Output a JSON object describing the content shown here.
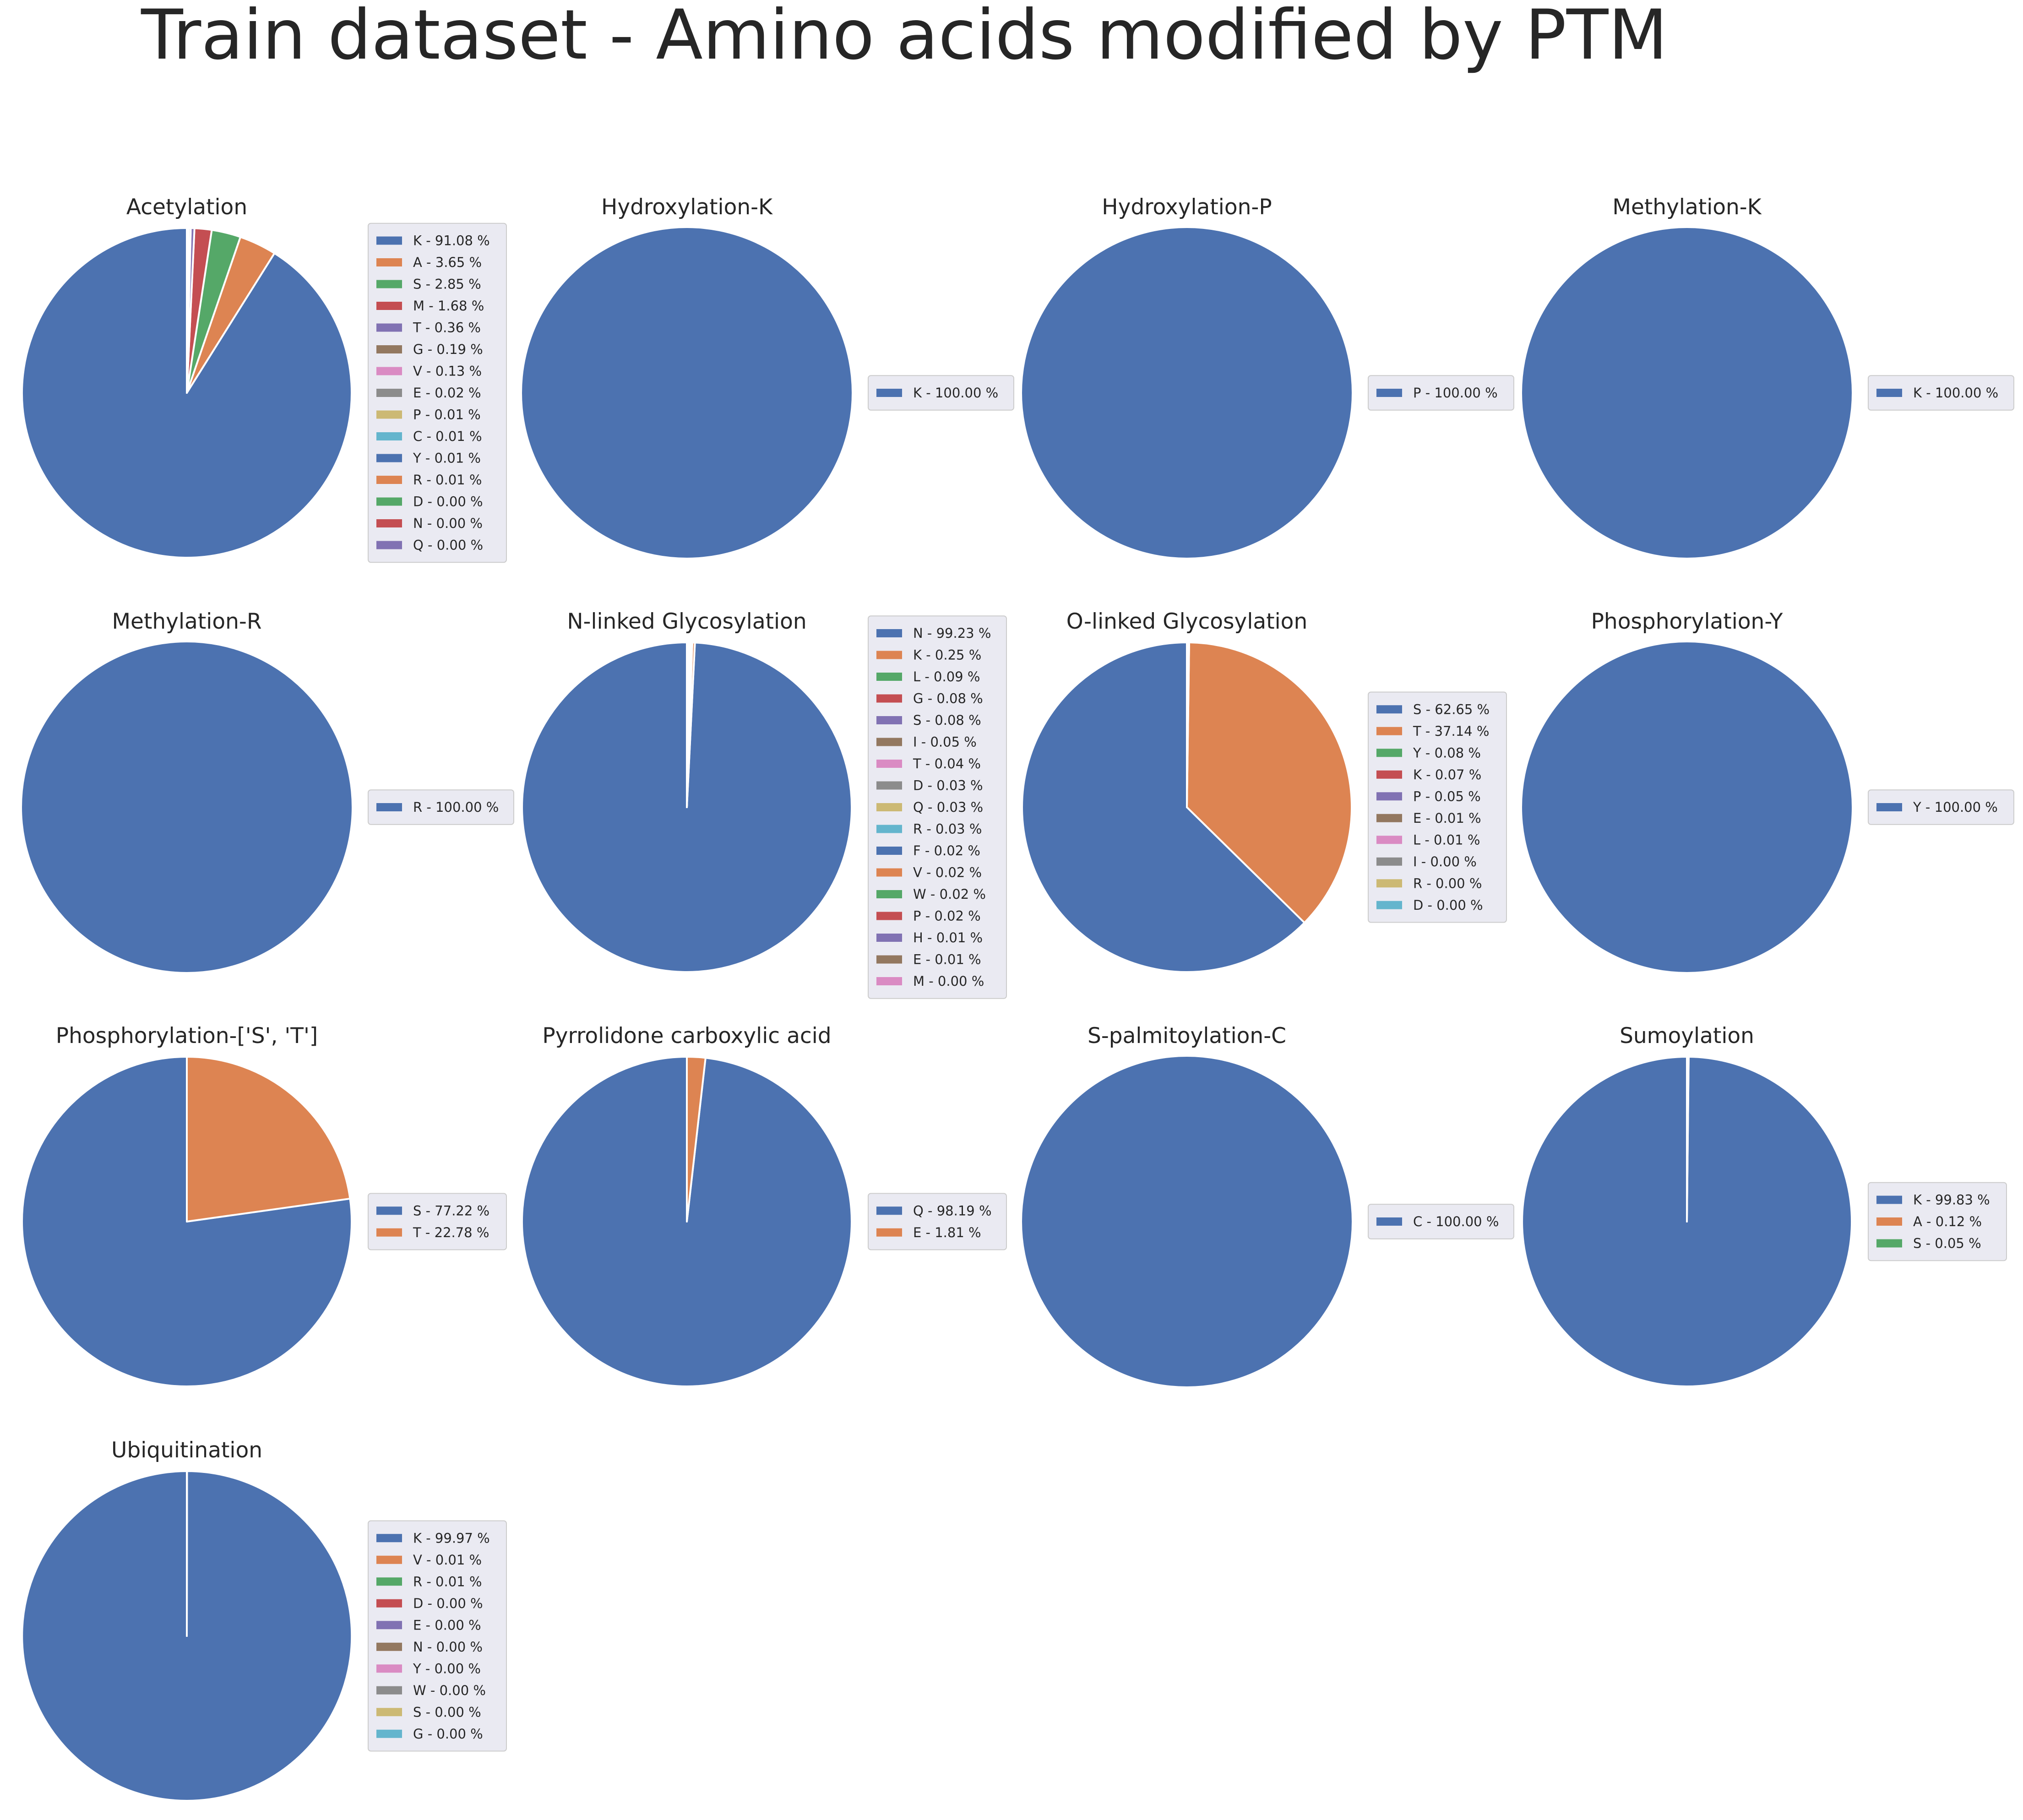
{
  "figure_title": "Train dataset - Amino acids modified by PTM",
  "colors": [
    "#4c72b0",
    "#dd8452",
    "#55a868",
    "#c44e52",
    "#8172b3",
    "#937860",
    "#da8bc3",
    "#8c8c8c",
    "#ccb974",
    "#64b5cd"
  ],
  "chart_data": [
    {
      "type": "pie",
      "title": "Acetylation",
      "labels": [
        "K",
        "A",
        "S",
        "M",
        "T",
        "G",
        "V",
        "E",
        "P",
        "C",
        "Y",
        "R",
        "D",
        "N",
        "Q"
      ],
      "values": [
        91.08,
        3.65,
        2.85,
        1.68,
        0.36,
        0.19,
        0.13,
        0.02,
        0.01,
        0.01,
        0.01,
        0.01,
        0.0,
        0.0,
        0.0
      ],
      "legend": [
        "K - 91.08 %",
        "A - 3.65 %",
        "S - 2.85 %",
        "M - 1.68 %",
        "T - 0.36 %",
        "G - 0.19 %",
        "V - 0.13 %",
        "E - 0.02 %",
        "P - 0.01 %",
        "C - 0.01 %",
        "Y - 0.01 %",
        "R - 0.01 %",
        "D - 0.00 %",
        "N - 0.00 %",
        "Q - 0.00 %"
      ]
    },
    {
      "type": "pie",
      "title": "Hydroxylation-K",
      "labels": [
        "K"
      ],
      "values": [
        100.0
      ],
      "legend": [
        "K - 100.00 %"
      ]
    },
    {
      "type": "pie",
      "title": "Hydroxylation-P",
      "labels": [
        "P"
      ],
      "values": [
        100.0
      ],
      "legend": [
        "P - 100.00 %"
      ]
    },
    {
      "type": "pie",
      "title": "Methylation-K",
      "labels": [
        "K"
      ],
      "values": [
        100.0
      ],
      "legend": [
        "K - 100.00 %"
      ]
    },
    {
      "type": "pie",
      "title": "Methylation-R",
      "labels": [
        "R"
      ],
      "values": [
        100.0
      ],
      "legend": [
        "R - 100.00 %"
      ]
    },
    {
      "type": "pie",
      "title": "N-linked Glycosylation",
      "labels": [
        "N",
        "K",
        "L",
        "G",
        "S",
        "I",
        "T",
        "D",
        "Q",
        "R",
        "F",
        "V",
        "W",
        "P",
        "H",
        "E",
        "M"
      ],
      "values": [
        99.23,
        0.25,
        0.09,
        0.08,
        0.08,
        0.05,
        0.04,
        0.03,
        0.03,
        0.03,
        0.02,
        0.02,
        0.02,
        0.02,
        0.01,
        0.01,
        0.0
      ],
      "legend": [
        "N - 99.23 %",
        "K - 0.25 %",
        "L - 0.09 %",
        "G - 0.08 %",
        "S - 0.08 %",
        "I - 0.05 %",
        "T - 0.04 %",
        "D - 0.03 %",
        "Q - 0.03 %",
        "R - 0.03 %",
        "F - 0.02 %",
        "V - 0.02 %",
        "W - 0.02 %",
        "P - 0.02 %",
        "H - 0.01 %",
        "E - 0.01 %",
        "M - 0.00 %"
      ]
    },
    {
      "type": "pie",
      "title": "O-linked Glycosylation",
      "labels": [
        "S",
        "T",
        "Y",
        "K",
        "P",
        "E",
        "L",
        "I",
        "R",
        "D"
      ],
      "values": [
        62.65,
        37.14,
        0.08,
        0.07,
        0.05,
        0.01,
        0.01,
        0.0,
        0.0,
        0.0
      ],
      "legend": [
        "S - 62.65 %",
        "T - 37.14 %",
        "Y - 0.08 %",
        "K - 0.07 %",
        "P - 0.05 %",
        "E - 0.01 %",
        "L - 0.01 %",
        "I - 0.00 %",
        "R - 0.00 %",
        "D - 0.00 %"
      ]
    },
    {
      "type": "pie",
      "title": "Phosphorylation-Y",
      "labels": [
        "Y"
      ],
      "values": [
        100.0
      ],
      "legend": [
        "Y - 100.00 %"
      ]
    },
    {
      "type": "pie",
      "title": "Phosphorylation-['S', 'T']",
      "labels": [
        "S",
        "T"
      ],
      "values": [
        77.22,
        22.78
      ],
      "legend": [
        "S - 77.22 %",
        "T - 22.78 %"
      ]
    },
    {
      "type": "pie",
      "title": "Pyrrolidone carboxylic acid",
      "labels": [
        "Q",
        "E"
      ],
      "values": [
        98.19,
        1.81
      ],
      "legend": [
        "Q - 98.19 %",
        "E - 1.81 %"
      ]
    },
    {
      "type": "pie",
      "title": "S-palmitoylation-C",
      "labels": [
        "C"
      ],
      "values": [
        100.0
      ],
      "legend": [
        "C - 100.00 %"
      ]
    },
    {
      "type": "pie",
      "title": "Sumoylation",
      "labels": [
        "K",
        "A",
        "S"
      ],
      "values": [
        99.83,
        0.12,
        0.05
      ],
      "legend": [
        "K - 99.83 %",
        "A - 0.12 %",
        "S - 0.05 %"
      ]
    },
    {
      "type": "pie",
      "title": "Ubiquitination",
      "labels": [
        "K",
        "V",
        "R",
        "D",
        "E",
        "N",
        "Y",
        "W",
        "S",
        "G"
      ],
      "values": [
        99.97,
        0.01,
        0.01,
        0.0,
        0.0,
        0.0,
        0.0,
        0.0,
        0.0,
        0.0
      ],
      "legend": [
        "K - 99.97 %",
        "V - 0.01 %",
        "R - 0.01 %",
        "D - 0.00 %",
        "E - 0.00 %",
        "N - 0.00 %",
        "Y - 0.00 %",
        "W - 0.00 %",
        "S - 0.00 %",
        "G - 0.00 %"
      ]
    }
  ]
}
